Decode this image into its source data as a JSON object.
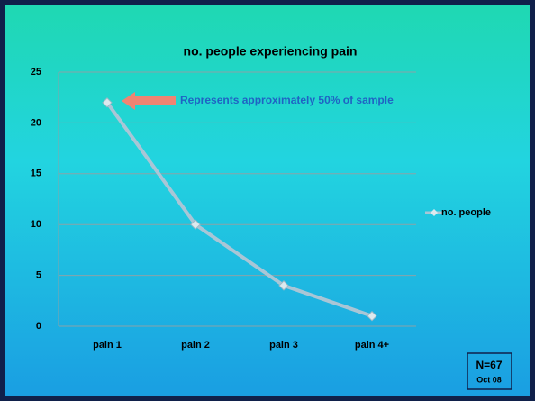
{
  "chart_data": {
    "type": "line",
    "title": "no. people experiencing pain",
    "categories": [
      "pain 1",
      "pain 2",
      "pain 3",
      "pain 4+"
    ],
    "series": [
      {
        "name": "no. people",
        "color": "#a9c6d6",
        "values": [
          22,
          10,
          4,
          1
        ]
      }
    ],
    "ylim": [
      0,
      25
    ],
    "yticks": [
      0,
      5,
      10,
      15,
      20,
      25
    ],
    "grid": true,
    "legend": "right",
    "annotation": "Represents approximately 50% of sample",
    "sample_note": {
      "n": "N=67",
      "date": "Oct 08"
    }
  }
}
